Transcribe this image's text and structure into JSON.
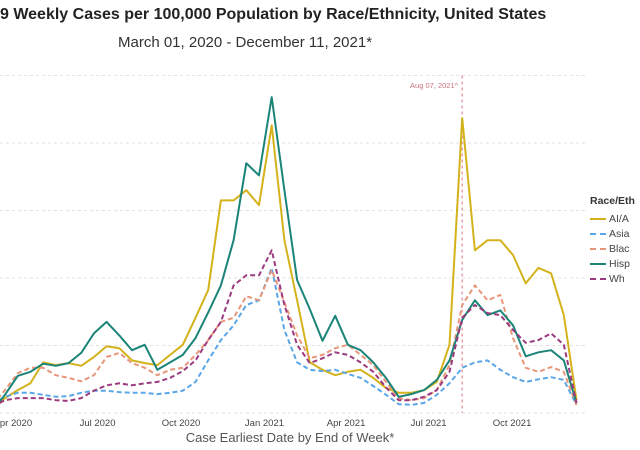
{
  "title": "9 Weekly Cases per 100,000 Population by Race/Ethnicity, United States",
  "subtitle": "March 01, 2020 - December 11, 2021*",
  "chart_data": {
    "type": "line",
    "xlabel": "Case Earliest Date by End of Week*",
    "ylabel": "",
    "ylim": [
      0,
      510
    ],
    "grid": true,
    "gridlines": [
      0,
      100,
      200,
      300,
      400,
      500
    ],
    "x_ticks": [
      {
        "date": "2020-04-01",
        "label": "pr 2020"
      },
      {
        "date": "2020-07-01",
        "label": "Jul 2020"
      },
      {
        "date": "2020-10-01",
        "label": "Oct 2020"
      },
      {
        "date": "2021-01-01",
        "label": "Jan 2021"
      },
      {
        "date": "2021-04-01",
        "label": "Apr 2021"
      },
      {
        "date": "2021-07-01",
        "label": "Jul 2021"
      },
      {
        "date": "2021-10-01",
        "label": "Oct 2021"
      }
    ],
    "annotation": {
      "date": "2021-08-07",
      "label": "Aug 07, 2021^",
      "color": "#e8a0a8"
    },
    "legend": {
      "title": "Race/Eth",
      "placement": "right"
    },
    "x": [
      "2020-03-07",
      "2020-03-21",
      "2020-04-04",
      "2020-04-18",
      "2020-05-02",
      "2020-05-16",
      "2020-05-30",
      "2020-06-13",
      "2020-06-27",
      "2020-07-11",
      "2020-07-25",
      "2020-08-08",
      "2020-08-22",
      "2020-09-05",
      "2020-09-19",
      "2020-10-03",
      "2020-10-17",
      "2020-10-31",
      "2020-11-14",
      "2020-11-28",
      "2020-12-12",
      "2020-12-26",
      "2021-01-09",
      "2021-01-23",
      "2021-02-06",
      "2021-02-20",
      "2021-03-06",
      "2021-03-20",
      "2021-04-03",
      "2021-04-17",
      "2021-05-01",
      "2021-05-15",
      "2021-05-29",
      "2021-06-12",
      "2021-06-26",
      "2021-07-10",
      "2021-07-24",
      "2021-08-07",
      "2021-08-21",
      "2021-09-04",
      "2021-09-18",
      "2021-10-02",
      "2021-10-16",
      "2021-10-30",
      "2021-11-13",
      "2021-11-27",
      "2021-12-11"
    ],
    "series": [
      {
        "name": "AI/A",
        "color": "#d4b21b",
        "dash": false,
        "values": [
          4,
          22,
          34,
          44,
          75,
          71,
          74,
          70,
          83,
          99,
          96,
          78,
          74,
          71,
          86,
          101,
          141,
          182,
          315,
          315,
          330,
          308,
          426,
          256,
          167,
          75,
          64,
          56,
          61,
          64,
          52,
          37,
          30,
          30,
          34,
          46,
          101,
          437,
          241,
          256,
          256,
          234,
          192,
          215,
          207,
          145,
          19
        ]
      },
      {
        "name": "Asia",
        "color": "#5aa6e8",
        "dash": true,
        "values": [
          13,
          24,
          30,
          30,
          27,
          24,
          25,
          30,
          33,
          33,
          31,
          30,
          30,
          28,
          30,
          33,
          46,
          78,
          108,
          130,
          160,
          167,
          215,
          123,
          75,
          64,
          62,
          64,
          58,
          52,
          40,
          27,
          13,
          12,
          15,
          27,
          44,
          67,
          75,
          78,
          64,
          53,
          46,
          50,
          53,
          49,
          12
        ]
      },
      {
        "name": "Blac",
        "color": "#e8967a",
        "dash": true,
        "values": [
          12,
          34,
          59,
          67,
          67,
          56,
          52,
          47,
          56,
          83,
          89,
          74,
          67,
          56,
          64,
          67,
          86,
          108,
          135,
          141,
          173,
          167,
          212,
          164,
          115,
          81,
          86,
          96,
          101,
          86,
          71,
          46,
          22,
          19,
          22,
          34,
          71,
          160,
          189,
          167,
          175,
          111,
          67,
          61,
          68,
          61,
          12
        ]
      },
      {
        "name": "Hisp",
        "color": "#1b8478",
        "dash": false,
        "values": [
          4,
          27,
          55,
          61,
          73,
          70,
          74,
          89,
          118,
          135,
          115,
          93,
          101,
          64,
          75,
          86,
          111,
          149,
          189,
          256,
          370,
          352,
          468,
          330,
          197,
          154,
          107,
          144,
          101,
          93,
          75,
          52,
          24,
          28,
          34,
          49,
          78,
          138,
          167,
          145,
          152,
          130,
          84,
          90,
          93,
          78,
          15
        ]
      },
      {
        "name": "Wh",
        "color": "#9b3a7f",
        "dash": true,
        "values": [
          10,
          19,
          22,
          22,
          22,
          19,
          18,
          22,
          33,
          41,
          44,
          41,
          44,
          46,
          52,
          62,
          78,
          108,
          135,
          189,
          204,
          204,
          241,
          160,
          101,
          74,
          81,
          90,
          86,
          75,
          61,
          38,
          19,
          19,
          24,
          34,
          61,
          141,
          160,
          148,
          145,
          123,
          104,
          108,
          118,
          101,
          15
        ]
      }
    ]
  }
}
